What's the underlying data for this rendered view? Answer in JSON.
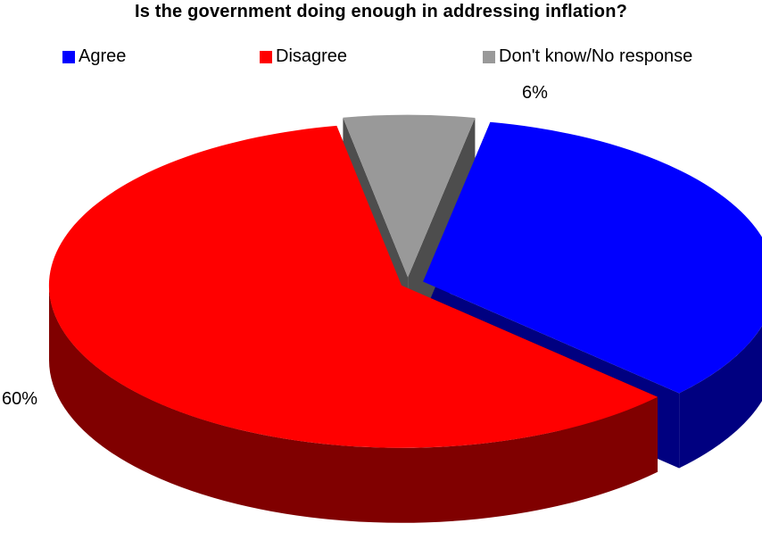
{
  "chart_data": {
    "type": "pie",
    "title": "Is the government doing enough in addressing inflation?",
    "categories": [
      "Agree",
      "Disagree",
      "Don't know/No response"
    ],
    "values": [
      34,
      60,
      6
    ],
    "value_labels": [
      "",
      "60%",
      "6%"
    ],
    "colors": [
      "#0000ff",
      "#ff0000",
      "#999999"
    ],
    "side_colors": [
      "#000080",
      "#800000",
      "#4d4d4d"
    ],
    "legend_position": "top",
    "exploded": true,
    "three_d": true
  }
}
